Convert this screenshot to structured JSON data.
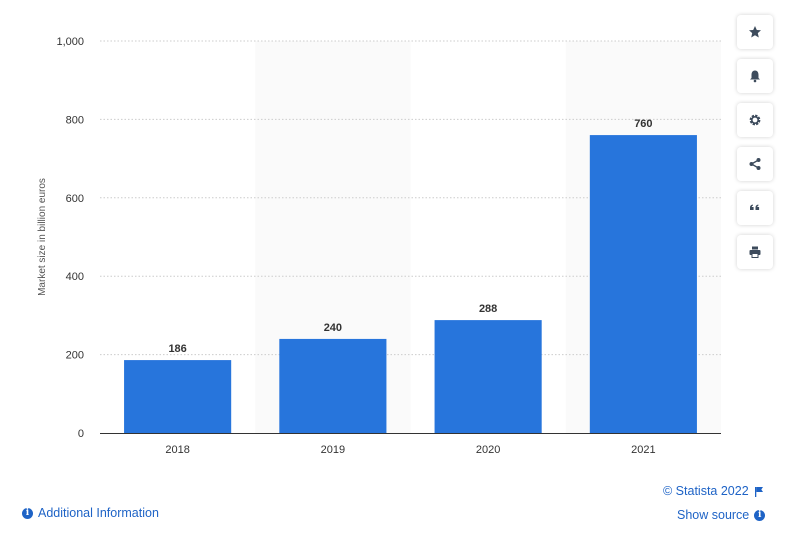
{
  "chart_data": {
    "type": "bar",
    "categories": [
      "2018",
      "2019",
      "2020",
      "2021"
    ],
    "values": [
      186,
      240,
      288,
      760
    ],
    "title": "",
    "xlabel": "",
    "ylabel": "Market size in billion euros",
    "ylim": [
      0,
      1000
    ],
    "yticks": [
      "0",
      "200",
      "400",
      "600",
      "800",
      "1,000"
    ],
    "grid": true,
    "bar_color": "#2775dc"
  },
  "toolbar": {
    "buttons": [
      {
        "name": "favorite-button",
        "icon": "star-icon"
      },
      {
        "name": "notification-button",
        "icon": "bell-icon"
      },
      {
        "name": "settings-button",
        "icon": "gear-icon"
      },
      {
        "name": "share-button",
        "icon": "share-icon"
      },
      {
        "name": "cite-button",
        "icon": "quote-icon"
      },
      {
        "name": "print-button",
        "icon": "printer-icon"
      }
    ]
  },
  "footer": {
    "additional_info": "Additional Information",
    "copyright": "© Statista 2022",
    "show_source": "Show source"
  }
}
